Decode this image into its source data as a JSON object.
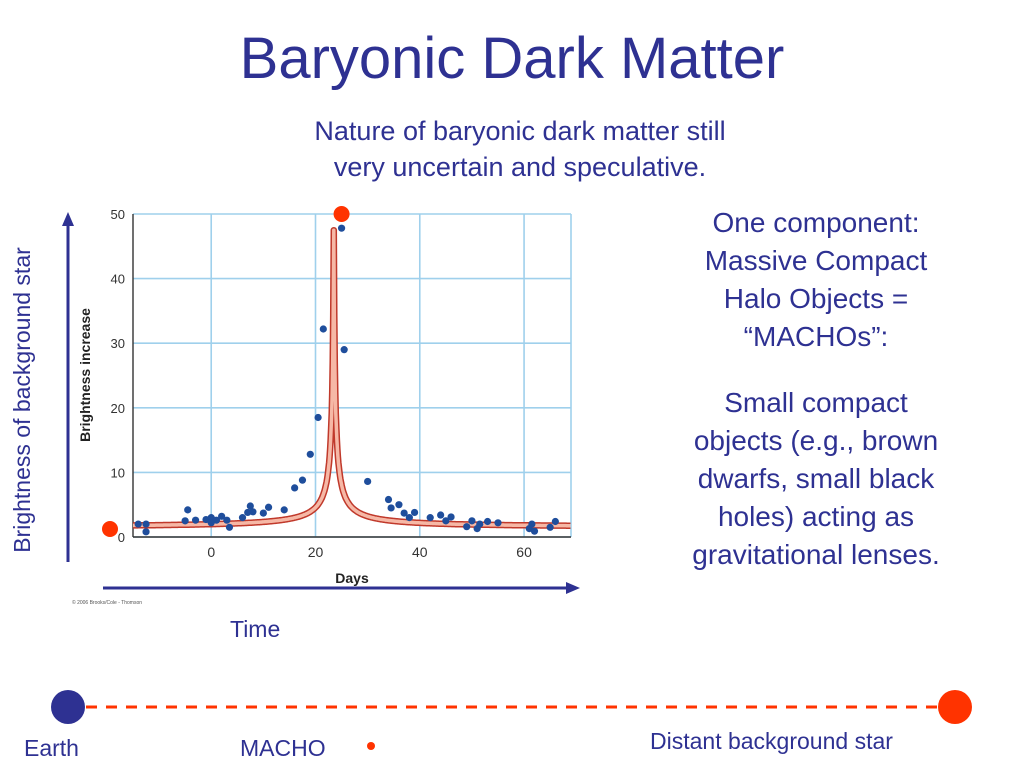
{
  "slide": {
    "title": "Baryonic Dark Matter",
    "subtitle_lines": [
      "Nature of baryonic dark matter still",
      "very uncertain and speculative."
    ],
    "side_text": {
      "lines1": [
        "One component:",
        "Massive Compact",
        "Halo Objects =",
        "“MACHOs”:"
      ],
      "lines2": [
        "Small compact",
        "objects (e.g., brown",
        "dwarfs, small black",
        "holes) acting as",
        "gravitational lenses."
      ]
    },
    "vertical_axis_label": "Brightness of background star",
    "time_label": "Time",
    "bottom": {
      "earth": "Earth",
      "macho": "MACHO",
      "star": "Distant background star"
    },
    "colors": {
      "text": "#2E3192",
      "earth": "#2E3192",
      "star": "#FF3300",
      "dash": "#FF3300"
    }
  },
  "chart_data": {
    "type": "scatter",
    "xlabel": "Days",
    "ylabel": "Brightness increase",
    "xlim": [
      -15,
      69
    ],
    "ylim": [
      0,
      50
    ],
    "xticks": [
      0,
      20,
      40,
      60
    ],
    "yticks": [
      0,
      10,
      20,
      30,
      40,
      50
    ],
    "grid": true,
    "credit": "© 2006 Brooks/Cole - Thomson",
    "points": [
      [
        -14,
        2.0
      ],
      [
        -12.5,
        2.0
      ],
      [
        -12.5,
        0.8
      ],
      [
        -5,
        2.5
      ],
      [
        -4.5,
        4.2
      ],
      [
        -3,
        2.6
      ],
      [
        -1,
        2.7
      ],
      [
        0,
        3.0
      ],
      [
        0,
        2.2
      ],
      [
        1,
        2.6
      ],
      [
        2,
        3.2
      ],
      [
        3,
        2.6
      ],
      [
        3.5,
        1.5
      ],
      [
        6,
        3.0
      ],
      [
        7,
        3.8
      ],
      [
        7.5,
        4.8
      ],
      [
        8,
        3.9
      ],
      [
        10,
        3.7
      ],
      [
        11,
        4.6
      ],
      [
        14,
        4.2
      ],
      [
        16,
        7.6
      ],
      [
        17.5,
        8.8
      ],
      [
        19,
        12.8
      ],
      [
        20.5,
        18.5
      ],
      [
        21.5,
        32.2
      ],
      [
        25,
        47.8
      ],
      [
        25.5,
        29.0
      ],
      [
        30,
        8.6
      ],
      [
        34,
        5.8
      ],
      [
        34.5,
        4.5
      ],
      [
        36,
        5.0
      ],
      [
        37,
        3.7
      ],
      [
        38,
        3.0
      ],
      [
        39,
        3.8
      ],
      [
        42,
        3.0
      ],
      [
        44,
        3.4
      ],
      [
        45,
        2.5
      ],
      [
        46,
        3.1
      ],
      [
        49,
        1.6
      ],
      [
        50,
        2.5
      ],
      [
        51,
        1.3
      ],
      [
        51.5,
        2.0
      ],
      [
        53,
        2.4
      ],
      [
        55,
        2.2
      ],
      [
        61,
        1.3
      ],
      [
        61.5,
        2.0
      ],
      [
        62,
        0.9
      ],
      [
        65,
        1.5
      ],
      [
        66,
        2.4
      ]
    ],
    "fit_curve": {
      "peak_day": 23.5,
      "baseline": 1.5
    },
    "markers": [
      {
        "x": 25,
        "y": 50,
        "role": "peak"
      },
      {
        "x": -15,
        "y": 0,
        "role": "start"
      }
    ]
  }
}
